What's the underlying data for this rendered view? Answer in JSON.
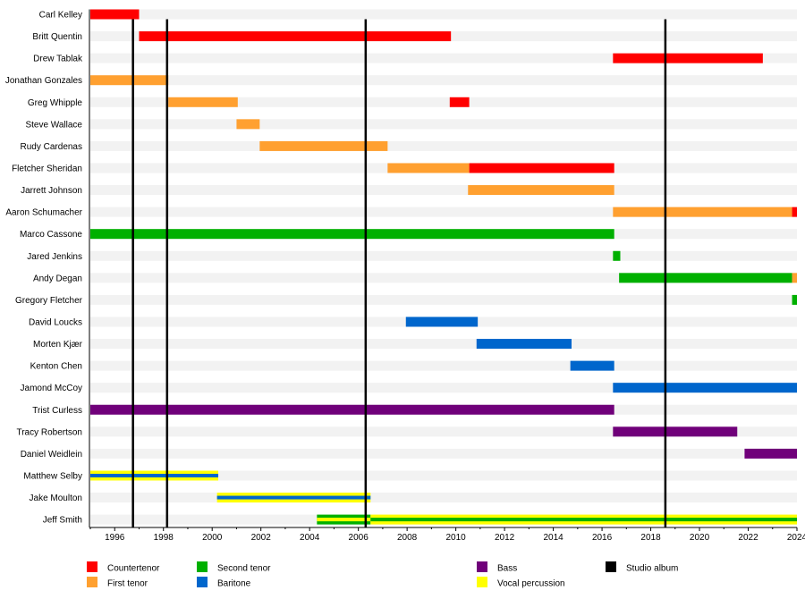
{
  "chart_data": {
    "type": "timeline",
    "title": "",
    "xlim": [
      1995,
      2024
    ],
    "x_ticks": [
      1996,
      1998,
      2000,
      2002,
      2004,
      2006,
      2008,
      2010,
      2012,
      2014,
      2016,
      2018,
      2020,
      2022,
      2024
    ],
    "grid": false,
    "colors": {
      "Countertenor": "#ff0000",
      "First tenor": "#ffa030",
      "Second tenor": "#00b000",
      "Baritone": "#0066cc",
      "Bass": "#70007a",
      "Vocal percussion": "#ffff00",
      "Studio album": "#000000"
    },
    "members": [
      {
        "name": "Carl Kelley",
        "periods": [
          {
            "role": "Countertenor",
            "start": 1995.0,
            "end": 1997.0
          }
        ]
      },
      {
        "name": "Britt Quentin",
        "periods": [
          {
            "role": "Countertenor",
            "start": 1997.0,
            "end": 2009.8
          }
        ]
      },
      {
        "name": "Drew Tablak",
        "periods": [
          {
            "role": "Countertenor",
            "start": 2016.45,
            "end": 2022.6
          }
        ]
      },
      {
        "name": "Jonathan Gonzales",
        "periods": [
          {
            "role": "First tenor",
            "start": 1995.0,
            "end": 1998.2
          }
        ]
      },
      {
        "name": "Greg Whipple",
        "periods": [
          {
            "role": "First tenor",
            "start": 1998.2,
            "end": 2001.05
          },
          {
            "role": "Countertenor",
            "start": 2009.75,
            "end": 2010.55
          }
        ]
      },
      {
        "name": "Steve Wallace",
        "periods": [
          {
            "role": "First tenor",
            "start": 2001.0,
            "end": 2001.95
          }
        ]
      },
      {
        "name": "Rudy Cardenas",
        "periods": [
          {
            "role": "First tenor",
            "start": 2001.95,
            "end": 2007.2
          }
        ]
      },
      {
        "name": "Fletcher Sheridan",
        "periods": [
          {
            "role": "First tenor",
            "start": 2007.2,
            "end": 2010.55
          },
          {
            "role": "Countertenor",
            "start": 2010.55,
            "end": 2016.5
          }
        ]
      },
      {
        "name": "Jarrett Johnson",
        "periods": [
          {
            "role": "First tenor",
            "start": 2010.5,
            "end": 2016.5
          }
        ]
      },
      {
        "name": "Aaron Schumacher",
        "periods": [
          {
            "role": "First tenor",
            "start": 2016.45,
            "end": 2023.8
          },
          {
            "role": "Countertenor",
            "start": 2023.8,
            "end": 2024.0
          }
        ]
      },
      {
        "name": "Marco Cassone",
        "periods": [
          {
            "role": "Second tenor",
            "start": 1995.0,
            "end": 2016.5
          }
        ]
      },
      {
        "name": "Jared Jenkins",
        "periods": [
          {
            "role": "Second tenor",
            "start": 2016.45,
            "end": 2016.75
          }
        ]
      },
      {
        "name": "Andy Degan",
        "periods": [
          {
            "role": "Second tenor",
            "start": 2016.7,
            "end": 2023.8
          },
          {
            "role": "First tenor",
            "start": 2023.8,
            "end": 2024.0
          }
        ]
      },
      {
        "name": "Gregory Fletcher",
        "periods": [
          {
            "role": "Second tenor",
            "start": 2023.8,
            "end": 2024.0
          }
        ]
      },
      {
        "name": "David Loucks",
        "periods": [
          {
            "role": "Baritone",
            "start": 2007.95,
            "end": 2010.9
          }
        ]
      },
      {
        "name": "Morten Kjær",
        "periods": [
          {
            "role": "Baritone",
            "start": 2010.85,
            "end": 2014.75
          }
        ]
      },
      {
        "name": "Kenton Chen",
        "periods": [
          {
            "role": "Baritone",
            "start": 2014.7,
            "end": 2016.5
          }
        ]
      },
      {
        "name": "Jamond McCoy",
        "periods": [
          {
            "role": "Baritone",
            "start": 2016.45,
            "end": 2024.0
          }
        ]
      },
      {
        "name": "Trist Curless",
        "periods": [
          {
            "role": "Bass",
            "start": 1995.0,
            "end": 2016.5
          }
        ]
      },
      {
        "name": "Tracy Robertson",
        "periods": [
          {
            "role": "Bass",
            "start": 2016.45,
            "end": 2021.55
          }
        ]
      },
      {
        "name": "Daniel Weidlein",
        "periods": [
          {
            "role": "Bass",
            "start": 2021.85,
            "end": 2024.0
          }
        ]
      },
      {
        "name": "Matthew Selby",
        "periods": [
          {
            "role": "Vocal percussion",
            "secondary": "Baritone",
            "start": 1995.0,
            "end": 2000.25
          }
        ]
      },
      {
        "name": "Jake Moulton",
        "periods": [
          {
            "role": "Vocal percussion",
            "secondary": "Baritone",
            "start": 2000.2,
            "end": 2006.5
          }
        ]
      },
      {
        "name": "Jeff Smith",
        "periods": [
          {
            "role": "Second tenor",
            "secondary": "Vocal percussion",
            "start": 2004.3,
            "end": 2006.5
          },
          {
            "role": "Vocal percussion",
            "secondary": "Second tenor",
            "start": 2006.5,
            "end": 2024.0
          }
        ]
      }
    ],
    "studio_albums": [
      1996.75,
      1998.15,
      2006.3,
      2018.6
    ],
    "legend": {
      "placement": "bottom",
      "entries": [
        "Countertenor",
        "First tenor",
        "Second tenor",
        "Baritone",
        "Bass",
        "Vocal percussion",
        "Studio album"
      ]
    }
  }
}
